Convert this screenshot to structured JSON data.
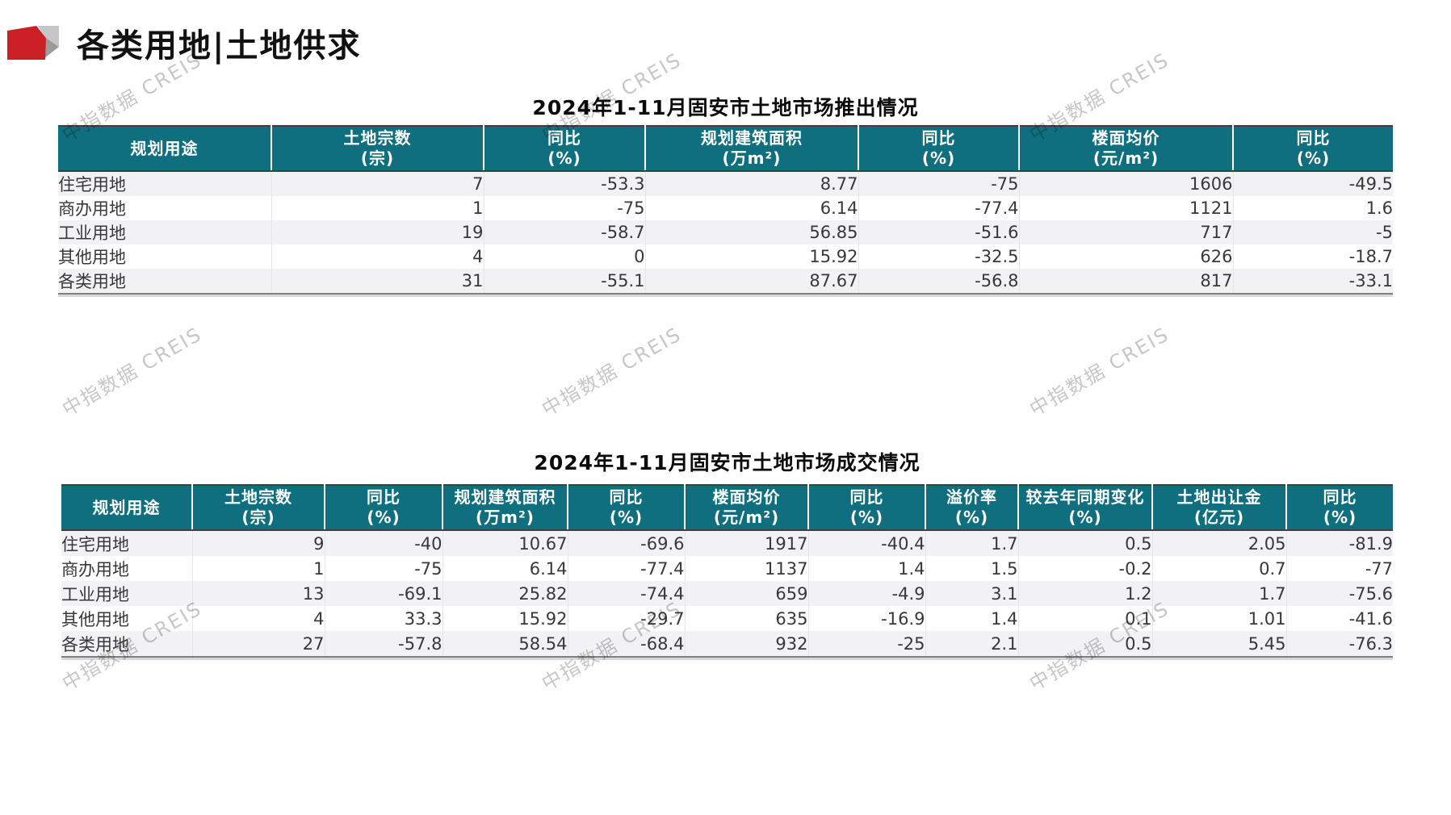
{
  "page": {
    "title": "各类用地|土地供求",
    "watermark_text": "中指数据 CREIS"
  },
  "colors": {
    "header_teal": "#0f6f7e",
    "logo_red": "#cb2026",
    "logo_gray_light": "#c6c6c6",
    "logo_gray_dark": "#9b9b9b",
    "row_stripe": "#f2f2f4"
  },
  "launch_table": {
    "title": "2024年1-11月固安市土地市场推出情况",
    "headers": [
      {
        "label": "规划用途",
        "unit": ""
      },
      {
        "label": "土地宗数",
        "unit": "(宗)"
      },
      {
        "label": "同比",
        "unit": "(%)"
      },
      {
        "label": "规划建筑面积",
        "unit": "(万m²)"
      },
      {
        "label": "同比",
        "unit": "(%)"
      },
      {
        "label": "楼面均价",
        "unit": "(元/m²)"
      },
      {
        "label": "同比",
        "unit": "(%)"
      }
    ],
    "rows": [
      [
        "住宅用地",
        "7",
        "-53.3",
        "8.77",
        "-75",
        "1606",
        "-49.5"
      ],
      [
        "商办用地",
        "1",
        "-75",
        "6.14",
        "-77.4",
        "1121",
        "1.6"
      ],
      [
        "工业用地",
        "19",
        "-58.7",
        "56.85",
        "-51.6",
        "717",
        "-5"
      ],
      [
        "其他用地",
        "4",
        "0",
        "15.92",
        "-32.5",
        "626",
        "-18.7"
      ],
      [
        "各类用地",
        "31",
        "-55.1",
        "87.67",
        "-56.8",
        "817",
        "-33.1"
      ]
    ]
  },
  "deal_table": {
    "title": "2024年1-11月固安市土地市场成交情况",
    "headers": [
      {
        "label": "规划用途",
        "unit": ""
      },
      {
        "label": "土地宗数",
        "unit": "(宗)"
      },
      {
        "label": "同比",
        "unit": "(%)"
      },
      {
        "label": "规划建筑面积",
        "unit": "(万m²)"
      },
      {
        "label": "同比",
        "unit": "(%)"
      },
      {
        "label": "楼面均价",
        "unit": "(元/m²)"
      },
      {
        "label": "同比",
        "unit": "(%)"
      },
      {
        "label": "溢价率",
        "unit": "(%)"
      },
      {
        "label": "较去年同期变化",
        "unit": "(%)"
      },
      {
        "label": "土地出让金",
        "unit": "(亿元)"
      },
      {
        "label": "同比",
        "unit": "(%)"
      }
    ],
    "rows": [
      [
        "住宅用地",
        "9",
        "-40",
        "10.67",
        "-69.6",
        "1917",
        "-40.4",
        "1.7",
        "0.5",
        "2.05",
        "-81.9"
      ],
      [
        "商办用地",
        "1",
        "-75",
        "6.14",
        "-77.4",
        "1137",
        "1.4",
        "1.5",
        "-0.2",
        "0.7",
        "-77"
      ],
      [
        "工业用地",
        "13",
        "-69.1",
        "25.82",
        "-74.4",
        "659",
        "-4.9",
        "3.1",
        "1.2",
        "1.7",
        "-75.6"
      ],
      [
        "其他用地",
        "4",
        "33.3",
        "15.92",
        "-29.7",
        "635",
        "-16.9",
        "1.4",
        "0.1",
        "1.01",
        "-41.6"
      ],
      [
        "各类用地",
        "27",
        "-57.8",
        "58.54",
        "-68.4",
        "932",
        "-25",
        "2.1",
        "0.5",
        "5.45",
        "-76.3"
      ]
    ]
  }
}
